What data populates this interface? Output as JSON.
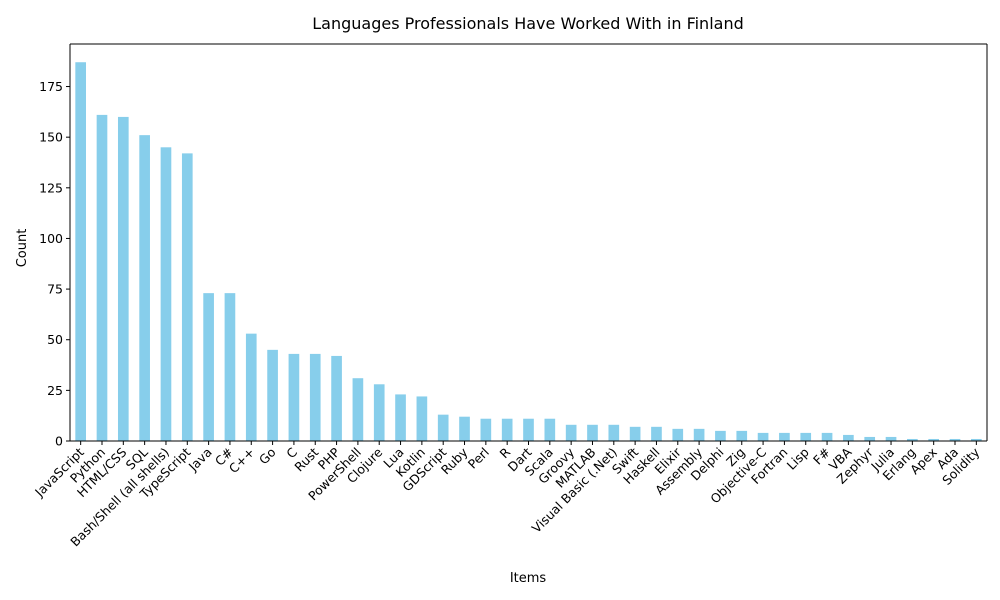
{
  "chart_data": {
    "type": "bar",
    "title": "Languages Professionals Have Worked With in Finland",
    "xlabel": "Items",
    "ylabel": "Count",
    "ylim": [
      0,
      196
    ],
    "yticks": [
      0,
      25,
      50,
      75,
      100,
      125,
      150,
      175
    ],
    "bar_color": "#87CEEB",
    "grid": false,
    "legend": "none",
    "categories": [
      "JavaScript",
      "Python",
      "HTML/CSS",
      "SQL",
      "Bash/Shell (all shells)",
      "TypeScript",
      "Java",
      "C#",
      "C++",
      "Go",
      "C",
      "Rust",
      "PHP",
      "PowerShell",
      "Clojure",
      "Lua",
      "Kotlin",
      "GDScript",
      "Ruby",
      "Perl",
      "R",
      "Dart",
      "Scala",
      "Groovy",
      "MATLAB",
      "Visual Basic (.Net)",
      "Swift",
      "Haskell",
      "Elixir",
      "Assembly",
      "Delphi",
      "Zig",
      "Objective-C",
      "Fortran",
      "Lisp",
      "F#",
      "VBA",
      "Zephyr",
      "Julia",
      "Erlang",
      "Apex",
      "Ada",
      "Solidity"
    ],
    "values": [
      187,
      161,
      160,
      151,
      145,
      142,
      73,
      73,
      53,
      45,
      43,
      43,
      42,
      31,
      28,
      23,
      22,
      13,
      12,
      11,
      11,
      11,
      11,
      8,
      8,
      8,
      7,
      7,
      6,
      6,
      5,
      5,
      4,
      4,
      4,
      4,
      3,
      2,
      2,
      1,
      1,
      1,
      1
    ]
  }
}
